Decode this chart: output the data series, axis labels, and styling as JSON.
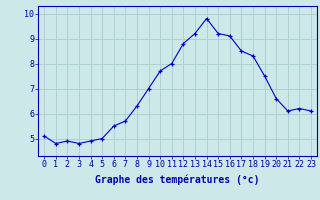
{
  "x": [
    0,
    1,
    2,
    3,
    4,
    5,
    6,
    7,
    8,
    9,
    10,
    11,
    12,
    13,
    14,
    15,
    16,
    17,
    18,
    19,
    20,
    21,
    22,
    23
  ],
  "y": [
    5.1,
    4.8,
    4.9,
    4.8,
    4.9,
    5.0,
    5.5,
    5.7,
    6.3,
    7.0,
    7.7,
    8.0,
    8.8,
    9.2,
    9.8,
    9.2,
    9.1,
    8.5,
    8.3,
    7.5,
    6.6,
    6.1,
    6.2,
    6.1
  ],
  "xlabel": "Graphe des températures (°c)",
  "ylim": [
    4.3,
    10.3
  ],
  "xlim": [
    -0.5,
    23.5
  ],
  "xtick_labels": [
    "0",
    "1",
    "2",
    "3",
    "4",
    "5",
    "6",
    "7",
    "8",
    "9",
    "10",
    "11",
    "12",
    "13",
    "14",
    "15",
    "16",
    "17",
    "18",
    "19",
    "20",
    "21",
    "22",
    "23"
  ],
  "ytick_values": [
    5,
    6,
    7,
    8,
    9,
    10
  ],
  "line_color": "#0000cc",
  "marker": "+",
  "bg_color": "#cce8e8",
  "grid_color": "#aacccc",
  "axis_color": "#0000aa",
  "label_color": "#0000aa",
  "label_fontsize": 7,
  "tick_fontsize": 6
}
